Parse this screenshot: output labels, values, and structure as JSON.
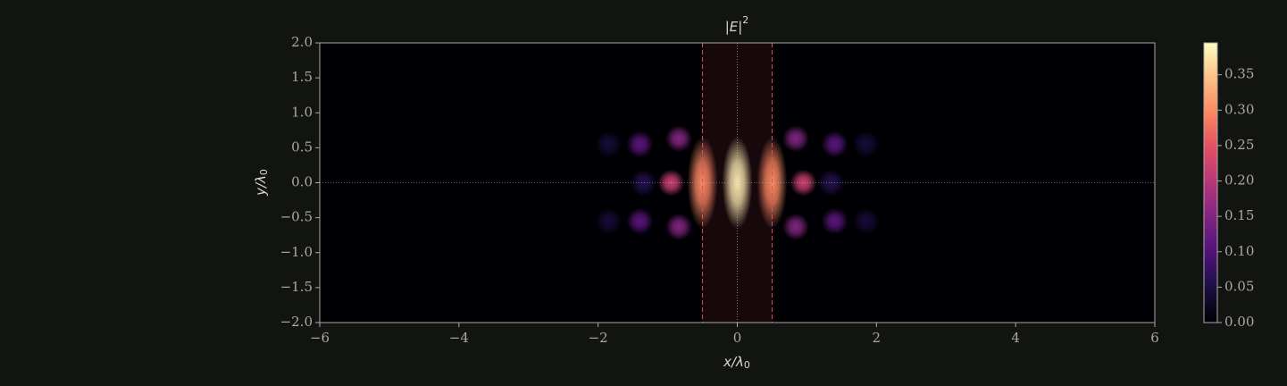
{
  "chart_data": {
    "type": "heatmap",
    "title": "|E|",
    "title_sup": "2",
    "xlabel": "x/λ",
    "xlabel_sub": "0",
    "ylabel": "y/λ",
    "ylabel_sub": "0",
    "xlim": [
      -6,
      6
    ],
    "xticks": [
      {
        "value": -6,
        "label": "−6"
      },
      {
        "value": -4,
        "label": "−4"
      },
      {
        "value": -2,
        "label": "−2"
      },
      0,
      2,
      4,
      6
    ],
    "ylim": [
      -2,
      2
    ],
    "yticks": [
      {
        "value": -2,
        "label": "−2.0"
      },
      {
        "value": -1.5,
        "label": "−1.5"
      },
      {
        "value": -1,
        "label": "−1.0"
      },
      {
        "value": -0.5,
        "label": "−0.5"
      },
      {
        "value": 0,
        "label": "0.0"
      },
      0.5,
      {
        "value": 1,
        "label": "1.0"
      },
      1.5,
      {
        "value": 2,
        "label": "2.0"
      }
    ],
    "clim": [
      0,
      0.395
    ],
    "cticks": [
      {
        "value": 0,
        "label": "0.00"
      },
      0.05,
      {
        "value": 0.1,
        "label": "0.10"
      },
      0.15,
      {
        "value": 0.2,
        "label": "0.20"
      },
      0.25,
      {
        "value": 0.3,
        "label": "0.30"
      },
      0.35
    ],
    "colormap": "magma",
    "slab": [
      -0.5,
      0.5
    ],
    "slab_color": "#e0505a",
    "spots": {
      "x": [
        0,
        -0.5,
        0.5,
        -0.95,
        0.95,
        -0.84,
        0.84,
        -0.84,
        0.84,
        -1.4,
        1.4,
        -1.4,
        1.4,
        -1.35,
        1.35,
        -1.85,
        1.85,
        -1.85,
        1.85
      ],
      "y": [
        0,
        0,
        0,
        0,
        0,
        0.63,
        0.63,
        -0.63,
        -0.63,
        0.55,
        0.55,
        -0.55,
        -0.55,
        0,
        0,
        0.55,
        0.55,
        -0.55,
        -0.55
      ],
      "values": [
        0.39,
        0.3,
        0.3,
        0.22,
        0.22,
        0.15,
        0.15,
        0.15,
        0.15,
        0.11,
        0.11,
        0.11,
        0.11,
        0.06,
        0.06,
        0.04,
        0.04,
        0.04,
        0.04
      ]
    }
  }
}
